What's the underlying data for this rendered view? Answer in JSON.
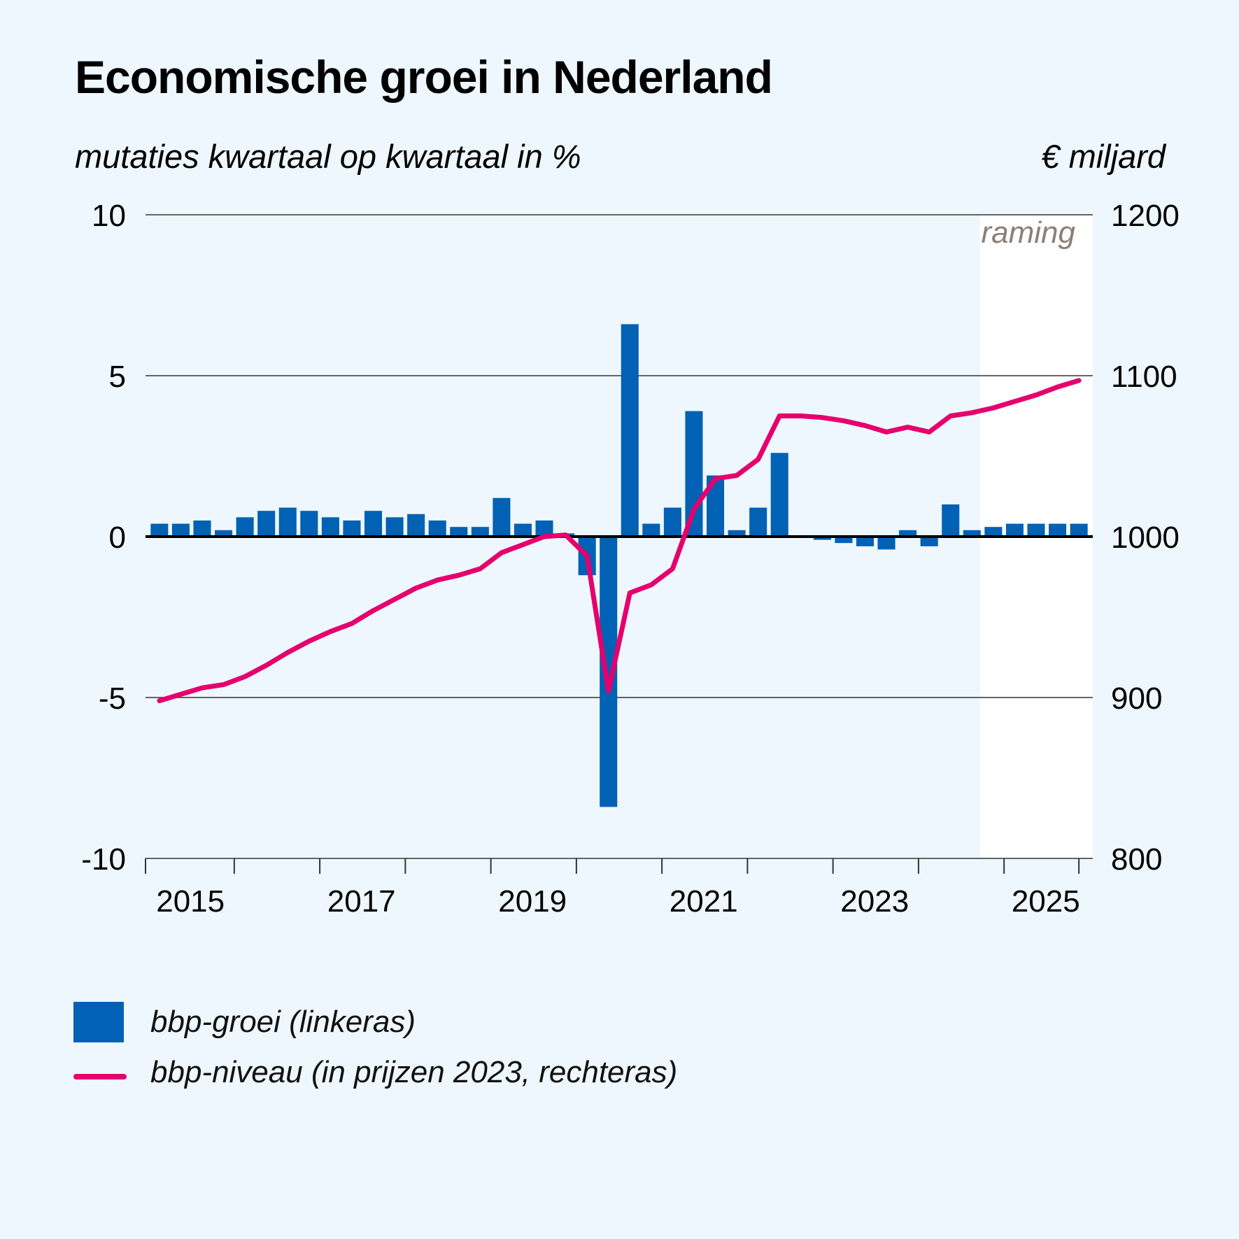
{
  "title": "Economische groei in Nederland",
  "colors": {
    "background": "#eef7fd",
    "bar": "#0061b5",
    "line": "#e5006d",
    "forecast_shade": "#ffffff",
    "forecast_label": "#8d7f77"
  },
  "chart_data": {
    "type": "bar",
    "title": "Economische groei in Nederland",
    "ylabel_left": "mutaties kwartaal op kwartaal in %",
    "ylabel_right": "€ miljard",
    "ylim_left": [
      -10,
      10
    ],
    "ylim_right": [
      800,
      1200
    ],
    "yticks_left": [
      "10",
      "5",
      "0",
      "-5",
      "-10"
    ],
    "yticks_right": [
      "1200",
      "1100",
      "1000",
      "900",
      "800"
    ],
    "xtick_labels": [
      "2015",
      "2017",
      "2019",
      "2021",
      "2023",
      "2025"
    ],
    "forecast_label": "raming",
    "forecast_start_index": 39,
    "categories": [
      "2015K1",
      "2015K2",
      "2015K3",
      "2015K4",
      "2016K1",
      "2016K2",
      "2016K3",
      "2016K4",
      "2017K1",
      "2017K2",
      "2017K3",
      "2017K4",
      "2018K1",
      "2018K2",
      "2018K3",
      "2018K4",
      "2019K1",
      "2019K2",
      "2019K3",
      "2019K4",
      "2020K1",
      "2020K2",
      "2020K3",
      "2020K4",
      "2021K1",
      "2021K2",
      "2021K3",
      "2021K4",
      "2022K1",
      "2022K2",
      "2022K3",
      "2022K4",
      "2023K1",
      "2023K2",
      "2023K3",
      "2023K4",
      "2024K1",
      "2024K2",
      "2024K3",
      "2024K4",
      "2025K1",
      "2025K2",
      "2025K3",
      "2025K4"
    ],
    "series": [
      {
        "name": "bbp-groei (linkeras)",
        "type": "bar",
        "axis": "left",
        "values": [
          0.4,
          0.4,
          0.5,
          0.2,
          0.6,
          0.8,
          0.9,
          0.8,
          0.6,
          0.5,
          0.8,
          0.6,
          0.7,
          0.5,
          0.3,
          0.3,
          1.2,
          0.4,
          0.5,
          0.1,
          -1.2,
          -8.4,
          6.6,
          0.4,
          0.9,
          3.9,
          1.9,
          0.2,
          0.9,
          2.6,
          0.0,
          -0.1,
          -0.2,
          -0.3,
          -0.4,
          0.2,
          -0.3,
          1.0,
          0.2,
          0.3,
          0.4,
          0.4,
          0.4,
          0.4
        ]
      },
      {
        "name": "bbp-niveau (in prijzen 2023, rechteras)",
        "type": "line",
        "axis": "right",
        "values": [
          898,
          902,
          906,
          908,
          913,
          920,
          928,
          935,
          941,
          946,
          954,
          961,
          968,
          973,
          976,
          980,
          990,
          995,
          1000,
          1001,
          988,
          904,
          965,
          970,
          980,
          1017,
          1036,
          1038,
          1048,
          1075,
          1075,
          1074,
          1072,
          1069,
          1065,
          1068,
          1065,
          1075,
          1077,
          1080,
          1084,
          1088,
          1093,
          1097
        ]
      }
    ]
  }
}
